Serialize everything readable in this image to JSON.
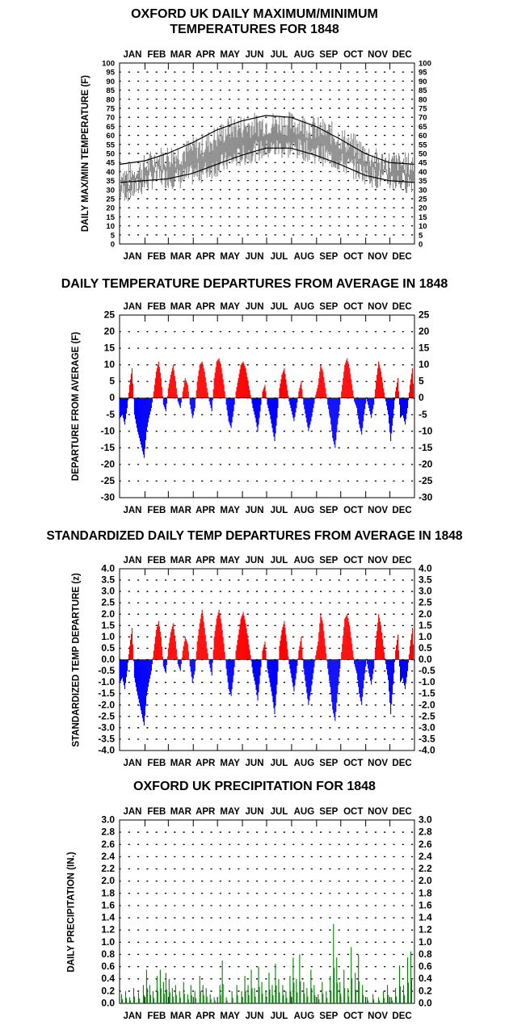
{
  "titles": {
    "temps": [
      "OXFORD UK DAILY MAXIMUM/MINIMUM",
      "TEMPERATURES FOR 1848"
    ],
    "departures": "DAILY TEMPERATURE DEPARTURES FROM AVERAGE IN 1848",
    "standardized": "STANDARDIZED DAILY TEMP DEPARTURES FROM AVERAGE IN 1848",
    "precip": "OXFORD UK PRECIPITATION FOR 1848"
  },
  "colors": {
    "temp_bars": "#8c8c8c",
    "normals": "#000000",
    "above": "#ff0000",
    "below": "#0000ff",
    "precip": "#008000"
  },
  "chart_data": [
    {
      "type": "bar",
      "title": "OXFORD UK DAILY MAXIMUM/MINIMUM TEMPERATURES FOR 1848",
      "ylabel": "DAILY MAX/MIN TEMPERATURE (F)",
      "months": [
        "JAN",
        "FEB",
        "MAR",
        "APR",
        "MAY",
        "JUN",
        "JUL",
        "AUG",
        "SEP",
        "OCT",
        "NOV",
        "DEC"
      ],
      "ylim": [
        0,
        100
      ],
      "yticks": [
        "0",
        "5",
        "10",
        "15",
        "20",
        "25",
        "30",
        "35",
        "40",
        "45",
        "50",
        "55",
        "60",
        "65",
        "70",
        "75",
        "80",
        "85",
        "90",
        "95",
        "100"
      ],
      "grid": "dotted",
      "daily_max_month_means": [
        38,
        47,
        50,
        55,
        64,
        66,
        67,
        66,
        62,
        55,
        46,
        44
      ],
      "daily_min_month_means": [
        29,
        37,
        36,
        40,
        46,
        51,
        53,
        52,
        48,
        42,
        36,
        34
      ],
      "normal_max": [
        {
          "day": 1,
          "value": 44
        },
        {
          "day": 32,
          "value": 46
        },
        {
          "day": 60,
          "value": 50
        },
        {
          "day": 91,
          "value": 56
        },
        {
          "day": 121,
          "value": 63
        },
        {
          "day": 152,
          "value": 68
        },
        {
          "day": 182,
          "value": 71
        },
        {
          "day": 213,
          "value": 70
        },
        {
          "day": 244,
          "value": 65
        },
        {
          "day": 274,
          "value": 58
        },
        {
          "day": 305,
          "value": 50
        },
        {
          "day": 335,
          "value": 45
        },
        {
          "day": 366,
          "value": 44
        }
      ],
      "normal_min": [
        {
          "day": 1,
          "value": 34
        },
        {
          "day": 32,
          "value": 35
        },
        {
          "day": 60,
          "value": 36
        },
        {
          "day": 91,
          "value": 39
        },
        {
          "day": 121,
          "value": 44
        },
        {
          "day": 152,
          "value": 49
        },
        {
          "day": 182,
          "value": 53
        },
        {
          "day": 213,
          "value": 53
        },
        {
          "day": 244,
          "value": 49
        },
        {
          "day": 274,
          "value": 44
        },
        {
          "day": 305,
          "value": 38
        },
        {
          "day": 335,
          "value": 35
        },
        {
          "day": 366,
          "value": 34
        }
      ]
    },
    {
      "type": "bar",
      "title": "DAILY TEMPERATURE DEPARTURES FROM AVERAGE IN 1848",
      "ylabel": "DEPARTURE FROM AVERAGE (F)",
      "months": [
        "JAN",
        "FEB",
        "MAR",
        "APR",
        "MAY",
        "JUN",
        "JUL",
        "AUG",
        "SEP",
        "OCT",
        "NOV",
        "DEC"
      ],
      "ylim": [
        -30,
        25
      ],
      "yticks": [
        "25",
        "20",
        "15",
        "10",
        "5",
        "0",
        "-5",
        "-10",
        "-15",
        "-20",
        "-25",
        "-30"
      ],
      "grid": "dotted",
      "pattern": [
        -6,
        -5,
        -8,
        -3,
        4,
        9,
        -5,
        -9,
        -12,
        -15,
        -18,
        -10,
        -6,
        -3,
        2,
        8,
        11,
        6,
        -2,
        -4,
        3,
        7,
        10,
        5,
        -1,
        -3,
        2,
        6,
        4,
        -2,
        -6,
        -3,
        5,
        10,
        11,
        8,
        3,
        -1,
        -4,
        6,
        11,
        12,
        9,
        4,
        -2,
        -7,
        -9,
        -4,
        2,
        6,
        10,
        11,
        9,
        5,
        1,
        -3,
        -6,
        -10,
        -4,
        2,
        4,
        -2,
        -5,
        -9,
        -13,
        -6,
        3,
        7,
        9,
        4,
        -1,
        -4,
        -7,
        -3,
        2,
        5,
        -2,
        -6,
        -10,
        -7,
        -3,
        1,
        4,
        10,
        8,
        3,
        -2,
        -6,
        -12,
        -15,
        -8,
        -2,
        4,
        10,
        12,
        9,
        4,
        -1,
        -3,
        -8,
        -11,
        -5,
        0,
        -3,
        -6,
        -2,
        5,
        11,
        8,
        3,
        -1,
        -5,
        -13,
        -6,
        2,
        6
      ],
      "day_step": 3
    },
    {
      "type": "bar",
      "title": "STANDARDIZED DAILY TEMP DEPARTURES FROM AVERAGE IN 1848",
      "ylabel": "STANDARDIZED TEMP DEPARTURE (z)",
      "months": [
        "JAN",
        "FEB",
        "MAR",
        "APR",
        "MAY",
        "JUN",
        "JUL",
        "AUG",
        "SEP",
        "OCT",
        "NOV",
        "DEC"
      ],
      "ylim": [
        -4,
        4
      ],
      "yticks": [
        "4.0",
        "3.5",
        "3.0",
        "2.5",
        "2.0",
        "1.5",
        "1.0",
        "0.5",
        "0.0",
        "-0.5",
        "-1.0",
        "-1.5",
        "-2.0",
        "-2.5",
        "-3.0",
        "-3.5",
        "-4.0"
      ],
      "grid": "dotted",
      "pattern": [
        -1.0,
        -0.8,
        -1.3,
        -0.5,
        0.6,
        1.4,
        -0.8,
        -1.4,
        -1.9,
        -2.4,
        -2.9,
        -1.6,
        -1.0,
        -0.5,
        0.4,
        1.3,
        1.7,
        1.0,
        -0.3,
        -0.6,
        0.5,
        1.2,
        1.6,
        0.8,
        -0.2,
        -0.5,
        0.4,
        1.0,
        0.7,
        -0.3,
        -1.0,
        -0.5,
        0.8,
        1.6,
        2.2,
        1.4,
        0.5,
        -0.2,
        -0.7,
        1.0,
        1.8,
        2.2,
        1.6,
        0.7,
        -0.4,
        -1.3,
        -1.6,
        -0.7,
        0.4,
        1.1,
        1.8,
        2.1,
        1.6,
        0.9,
        0.2,
        -0.6,
        -1.1,
        -1.8,
        -0.7,
        0.4,
        0.8,
        -0.4,
        -1.0,
        -1.6,
        -2.4,
        -1.1,
        0.6,
        1.3,
        1.7,
        0.8,
        -0.2,
        -0.8,
        -1.4,
        -0.6,
        0.4,
        1.0,
        -0.4,
        -1.2,
        -2.0,
        -1.4,
        -0.6,
        0.2,
        0.8,
        2.0,
        1.6,
        0.6,
        -0.4,
        -1.2,
        -2.2,
        -2.7,
        -1.5,
        -0.4,
        0.7,
        1.8,
        2.0,
        1.5,
        0.7,
        -0.2,
        -0.6,
        -1.5,
        -2.0,
        -0.9,
        0.0,
        -0.6,
        -1.1,
        -0.4,
        0.9,
        2.0,
        1.5,
        0.6,
        -0.2,
        -0.9,
        -2.4,
        -1.1,
        0.4,
        1.1
      ],
      "day_step": 3
    },
    {
      "type": "bar",
      "title": "OXFORD UK PRECIPITATION FOR 1848",
      "ylabel": "DAILY PRECIPITATION (IN.)",
      "months": [
        "JAN",
        "FEB",
        "MAR",
        "APR",
        "MAY",
        "JUN",
        "JUL",
        "AUG",
        "SEP",
        "OCT",
        "NOV",
        "DEC"
      ],
      "ylim": [
        0,
        3.0
      ],
      "yticks": [
        "0.0",
        "0.2",
        "0.4",
        "0.6",
        "0.8",
        "1.0",
        "1.2",
        "1.4",
        "1.6",
        "1.8",
        "2.0",
        "2.2",
        "2.4",
        "2.6",
        "2.8",
        "3.0"
      ],
      "grid": "dotted",
      "spikes": [
        {
          "day": 3,
          "value": 0.15
        },
        {
          "day": 8,
          "value": 0.2
        },
        {
          "day": 13,
          "value": 0.1
        },
        {
          "day": 18,
          "value": 0.25
        },
        {
          "day": 24,
          "value": 0.18
        },
        {
          "day": 30,
          "value": 0.3
        },
        {
          "day": 34,
          "value": 0.55
        },
        {
          "day": 38,
          "value": 0.3
        },
        {
          "day": 42,
          "value": 0.2
        },
        {
          "day": 47,
          "value": 0.45
        },
        {
          "day": 51,
          "value": 0.55
        },
        {
          "day": 55,
          "value": 0.35
        },
        {
          "day": 58,
          "value": 0.5
        },
        {
          "day": 62,
          "value": 0.4
        },
        {
          "day": 66,
          "value": 0.25
        },
        {
          "day": 70,
          "value": 0.3
        },
        {
          "day": 75,
          "value": 0.2
        },
        {
          "day": 80,
          "value": 0.35
        },
        {
          "day": 85,
          "value": 0.15
        },
        {
          "day": 89,
          "value": 0.3
        },
        {
          "day": 94,
          "value": 0.2
        },
        {
          "day": 100,
          "value": 0.45
        },
        {
          "day": 104,
          "value": 0.3
        },
        {
          "day": 108,
          "value": 0.25
        },
        {
          "day": 113,
          "value": 0.15
        },
        {
          "day": 118,
          "value": 0.1
        },
        {
          "day": 125,
          "value": 0.3
        },
        {
          "day": 128,
          "value": 0.7
        },
        {
          "day": 133,
          "value": 0.1
        },
        {
          "day": 140,
          "value": 0.2
        },
        {
          "day": 146,
          "value": 0.3
        },
        {
          "day": 152,
          "value": 0.2
        },
        {
          "day": 156,
          "value": 0.45
        },
        {
          "day": 160,
          "value": 0.3
        },
        {
          "day": 164,
          "value": 0.55
        },
        {
          "day": 168,
          "value": 0.25
        },
        {
          "day": 173,
          "value": 0.6
        },
        {
          "day": 177,
          "value": 0.35
        },
        {
          "day": 182,
          "value": 0.2
        },
        {
          "day": 186,
          "value": 0.5
        },
        {
          "day": 190,
          "value": 0.3
        },
        {
          "day": 194,
          "value": 0.65
        },
        {
          "day": 198,
          "value": 0.4
        },
        {
          "day": 203,
          "value": 0.3
        },
        {
          "day": 207,
          "value": 0.2
        },
        {
          "day": 212,
          "value": 0.45
        },
        {
          "day": 216,
          "value": 0.75
        },
        {
          "day": 220,
          "value": 0.4
        },
        {
          "day": 224,
          "value": 0.8
        },
        {
          "day": 229,
          "value": 0.35
        },
        {
          "day": 233,
          "value": 0.25
        },
        {
          "day": 238,
          "value": 0.55
        },
        {
          "day": 242,
          "value": 0.3
        },
        {
          "day": 247,
          "value": 0.15
        },
        {
          "day": 252,
          "value": 0.35
        },
        {
          "day": 257,
          "value": 0.2
        },
        {
          "day": 262,
          "value": 0.45
        },
        {
          "day": 266,
          "value": 1.3
        },
        {
          "day": 270,
          "value": 0.75
        },
        {
          "day": 274,
          "value": 0.35
        },
        {
          "day": 279,
          "value": 0.55
        },
        {
          "day": 284,
          "value": 0.25
        },
        {
          "day": 288,
          "value": 0.92
        },
        {
          "day": 293,
          "value": 0.5
        },
        {
          "day": 297,
          "value": 0.8
        },
        {
          "day": 302,
          "value": 0.3
        },
        {
          "day": 308,
          "value": 0.1
        },
        {
          "day": 315,
          "value": 0.15
        },
        {
          "day": 322,
          "value": 0.1
        },
        {
          "day": 328,
          "value": 0.2
        },
        {
          "day": 333,
          "value": 0.3
        },
        {
          "day": 338,
          "value": 0.1
        },
        {
          "day": 343,
          "value": 0.25
        },
        {
          "day": 348,
          "value": 0.62
        },
        {
          "day": 353,
          "value": 0.3
        },
        {
          "day": 358,
          "value": 0.75
        },
        {
          "day": 362,
          "value": 0.85
        }
      ]
    }
  ]
}
